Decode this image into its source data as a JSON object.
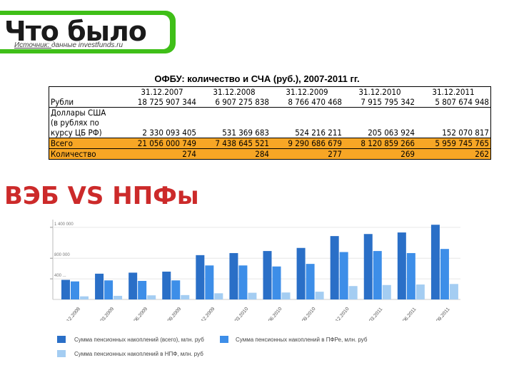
{
  "header": {
    "title": "Что было",
    "source_prefix": "Источник: ",
    "source_text": "данные investfunds.ru"
  },
  "table": {
    "title": "ОФБУ: количество и СЧА (руб.), 2007-2011 гг.",
    "columns": [
      "31.12.2007",
      "31.12.2008",
      "31.12.2009",
      "31.12.2010",
      "31.12.2011"
    ],
    "rows": [
      {
        "label": "Рубли",
        "values": [
          "18 725 907 344",
          "6 907 275 838",
          "8 766 470 468",
          "7 915 795 342",
          "5 807 674 948"
        ]
      },
      {
        "label_lines": [
          "Доллары США",
          "(в рублях по",
          "курсу ЦБ РФ)"
        ],
        "values": [
          "2 330 093 405",
          "531 369 683",
          "524 216 211",
          "205 063 924",
          "152 070 817"
        ]
      },
      {
        "label": "Всего",
        "values": [
          "21 056 000 749",
          "7 438 645 521",
          "9 290 686 679",
          "8 120 859 266",
          "5 959 745 765"
        ]
      },
      {
        "label": "Количество",
        "values": [
          "274",
          "284",
          "277",
          "269",
          "262"
        ]
      }
    ],
    "highlight_color": "#f7a625"
  },
  "section_title": "ВЭБ VS НПФы",
  "chart_data": {
    "type": "bar",
    "categories": [
      "31.12.2008",
      "31.03.2009",
      "30.06.2009",
      "30.09.2009",
      "31.12.2009",
      "31.03.2010",
      "30.06.2010",
      "30.09.2010",
      "31.12.2010",
      "31.03.2011",
      "30.06.2011",
      "30.09.2011"
    ],
    "y_tick_labels": [
      "1 400 000",
      "800 000",
      "400 ..."
    ],
    "series": [
      {
        "name": "Сумма пенсионных накоплений (всего), млн. руб",
        "color": "#2a6fc7",
        "values": [
          380000,
          500000,
          520000,
          540000,
          860000,
          900000,
          940000,
          1000000,
          1230000,
          1270000,
          1300000,
          1450000
        ]
      },
      {
        "name": "Сумма пенсионных накоплений в ПФРе, млн. руб",
        "color": "#3d8ee8",
        "values": [
          350000,
          370000,
          360000,
          370000,
          660000,
          660000,
          640000,
          690000,
          920000,
          940000,
          900000,
          980000
        ]
      },
      {
        "name": "Сумма пенсионных накоплений в НПФ, млн. руб",
        "color": "#a4cdf2",
        "values": [
          60000,
          70000,
          80000,
          85000,
          120000,
          130000,
          135000,
          150000,
          260000,
          280000,
          290000,
          300000
        ]
      }
    ],
    "ylim": [
      0,
      1550000
    ],
    "grid": true
  }
}
